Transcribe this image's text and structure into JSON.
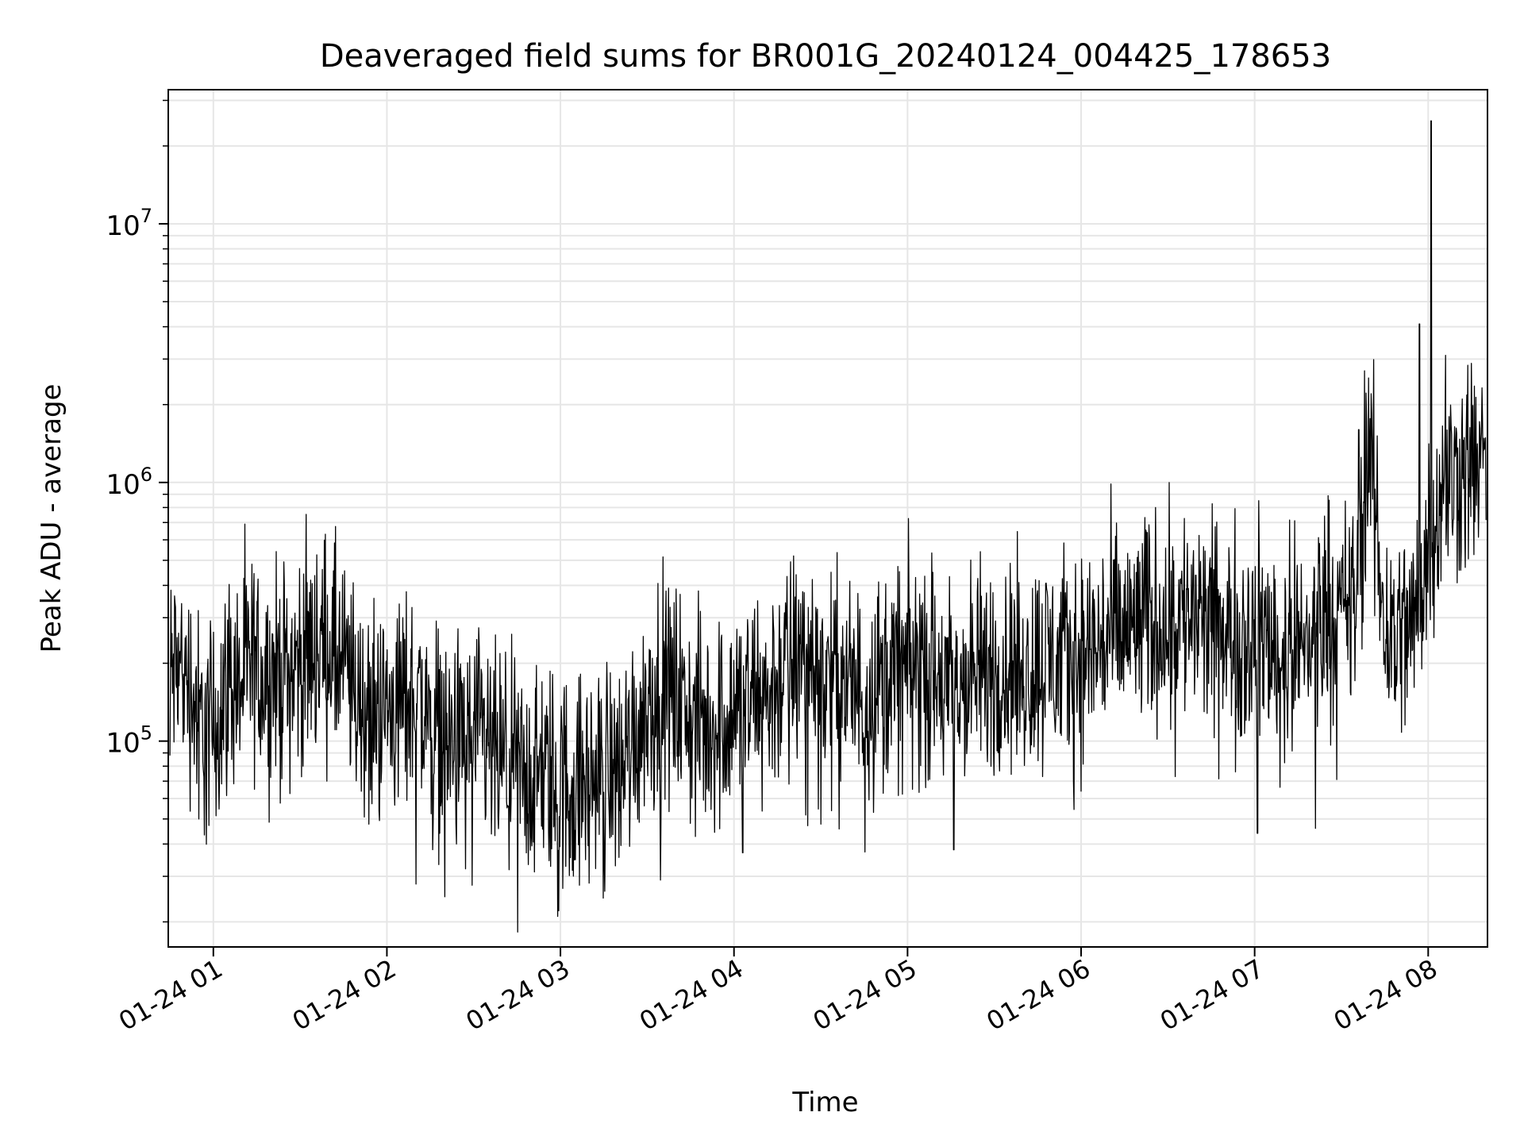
{
  "chart_data": {
    "type": "line",
    "title": "Deaveraged field sums for BR001G_20240124_004425_178653",
    "xlabel": "Time",
    "ylabel": "Peak ADU - average",
    "y_scale": "log",
    "ylim": [
      16000,
      33000000
    ],
    "xlim": [
      "2024-01-24 00:44:25",
      "2024-01-24 08:20:30"
    ],
    "grid": true,
    "line_color": "#000000",
    "grid_color": "#e6e6e6",
    "x_ticks": [
      {
        "time": "2024-01-24 01:00",
        "label": "01-24 01"
      },
      {
        "time": "2024-01-24 02:00",
        "label": "01-24 02"
      },
      {
        "time": "2024-01-24 03:00",
        "label": "01-24 03"
      },
      {
        "time": "2024-01-24 04:00",
        "label": "01-24 04"
      },
      {
        "time": "2024-01-24 05:00",
        "label": "01-24 05"
      },
      {
        "time": "2024-01-24 06:00",
        "label": "01-24 06"
      },
      {
        "time": "2024-01-24 07:00",
        "label": "01-24 07"
      },
      {
        "time": "2024-01-24 08:00",
        "label": "01-24 08"
      }
    ],
    "y_ticks": [
      {
        "value": 100000,
        "base": "10",
        "exp": "5"
      },
      {
        "value": 1000000,
        "base": "10",
        "exp": "6"
      },
      {
        "value": 10000000,
        "base": "10",
        "exp": "7"
      }
    ],
    "series": [
      {
        "points": [
          [
            "2024-01-24 00:45",
            180000
          ],
          [
            "2024-01-24 00:50",
            200000
          ],
          [
            "2024-01-24 00:55",
            120000
          ],
          [
            "2024-01-24 01:00",
            110000
          ],
          [
            "2024-01-24 01:05",
            170000
          ],
          [
            "2024-01-24 01:10",
            180000
          ],
          [
            "2024-01-24 01:15",
            190000
          ],
          [
            "2024-01-24 01:20",
            175000
          ],
          [
            "2024-01-24 01:25",
            185000
          ],
          [
            "2024-01-24 01:30",
            200000
          ],
          [
            "2024-01-24 01:35",
            230000
          ],
          [
            "2024-01-24 01:40",
            240000
          ],
          [
            "2024-01-24 01:45",
            190000
          ],
          [
            "2024-01-24 01:50",
            140000
          ],
          [
            "2024-01-24 01:55",
            130000
          ],
          [
            "2024-01-24 02:00",
            135000
          ],
          [
            "2024-01-24 02:05",
            140000
          ],
          [
            "2024-01-24 02:10",
            150000
          ],
          [
            "2024-01-24 02:15",
            120000
          ],
          [
            "2024-01-24 02:20",
            100000
          ],
          [
            "2024-01-24 02:25",
            95000
          ],
          [
            "2024-01-24 02:30",
            100000
          ],
          [
            "2024-01-24 02:35",
            90000
          ],
          [
            "2024-01-24 02:40",
            80000
          ],
          [
            "2024-01-24 02:45",
            75000
          ],
          [
            "2024-01-24 02:50",
            70000
          ],
          [
            "2024-01-24 02:55",
            75000
          ],
          [
            "2024-01-24 03:00",
            70000
          ],
          [
            "2024-01-24 03:05",
            65000
          ],
          [
            "2024-01-24 03:10",
            70000
          ],
          [
            "2024-01-24 03:15",
            75000
          ],
          [
            "2024-01-24 03:20",
            80000
          ],
          [
            "2024-01-24 03:25",
            100000
          ],
          [
            "2024-01-24 03:30",
            140000
          ],
          [
            "2024-01-24 03:35",
            160000
          ],
          [
            "2024-01-24 03:40",
            150000
          ],
          [
            "2024-01-24 03:45",
            120000
          ],
          [
            "2024-01-24 03:50",
            110000
          ],
          [
            "2024-01-24 03:55",
            120000
          ],
          [
            "2024-01-24 04:00",
            130000
          ],
          [
            "2024-01-24 04:05",
            140000
          ],
          [
            "2024-01-24 04:10",
            150000
          ],
          [
            "2024-01-24 04:15",
            170000
          ],
          [
            "2024-01-24 04:20",
            200000
          ],
          [
            "2024-01-24 04:25",
            210000
          ],
          [
            "2024-01-24 04:30",
            180000
          ],
          [
            "2024-01-24 04:35",
            170000
          ],
          [
            "2024-01-24 04:40",
            160000
          ],
          [
            "2024-01-24 04:45",
            150000
          ],
          [
            "2024-01-24 04:50",
            170000
          ],
          [
            "2024-01-24 04:55",
            180000
          ],
          [
            "2024-01-24 05:00",
            190000
          ],
          [
            "2024-01-24 05:05",
            200000
          ],
          [
            "2024-01-24 05:10",
            170000
          ],
          [
            "2024-01-24 05:15",
            160000
          ],
          [
            "2024-01-24 05:20",
            170000
          ],
          [
            "2024-01-24 05:25",
            180000
          ],
          [
            "2024-01-24 05:30",
            190000
          ],
          [
            "2024-01-24 05:35",
            195000
          ],
          [
            "2024-01-24 05:40",
            185000
          ],
          [
            "2024-01-24 05:45",
            200000
          ],
          [
            "2024-01-24 05:50",
            210000
          ],
          [
            "2024-01-24 05:55",
            200000
          ],
          [
            "2024-01-24 06:00",
            210000
          ],
          [
            "2024-01-24 06:05",
            230000
          ],
          [
            "2024-01-24 06:10",
            250000
          ],
          [
            "2024-01-24 06:15",
            260000
          ],
          [
            "2024-01-24 06:20",
            280000
          ],
          [
            "2024-01-24 06:25",
            290000
          ],
          [
            "2024-01-24 06:30",
            300000
          ],
          [
            "2024-01-24 06:35",
            310000
          ],
          [
            "2024-01-24 06:40",
            290000
          ],
          [
            "2024-01-24 06:45",
            270000
          ],
          [
            "2024-01-24 06:50",
            260000
          ],
          [
            "2024-01-24 06:55",
            250000
          ],
          [
            "2024-01-24 07:00",
            260000
          ],
          [
            "2024-01-24 07:05",
            250000
          ],
          [
            "2024-01-24 07:10",
            240000
          ],
          [
            "2024-01-24 07:15",
            220000
          ],
          [
            "2024-01-24 07:20",
            260000
          ],
          [
            "2024-01-24 07:25",
            350000
          ],
          [
            "2024-01-24 07:30",
            300000
          ],
          [
            "2024-01-24 07:35",
            350000
          ],
          [
            "2024-01-24 07:40",
            1300000
          ],
          [
            "2024-01-24 07:45",
            270000
          ],
          [
            "2024-01-24 07:50",
            260000
          ],
          [
            "2024-01-24 07:55",
            280000
          ],
          [
            "2024-01-24 08:00",
            650000
          ],
          [
            "2024-01-24 08:05",
            900000
          ],
          [
            "2024-01-24 08:10",
            1100000
          ],
          [
            "2024-01-24 08:15",
            1200000
          ],
          [
            "2024-01-24 08:20",
            1200000
          ]
        ],
        "spikes": [
          [
            "2024-01-24 07:36",
            1600000
          ],
          [
            "2024-01-24 07:38",
            2700000
          ],
          [
            "2024-01-24 07:57",
            4100000
          ],
          [
            "2024-01-24 08:01",
            25000000
          ],
          [
            "2024-01-24 08:06",
            3100000
          ]
        ],
        "dips": [
          [
            "2024-01-24 02:59",
            21000
          ],
          [
            "2024-01-24 02:20",
            25000
          ],
          [
            "2024-01-24 02:10",
            28000
          ],
          [
            "2024-01-24 05:16",
            38000
          ],
          [
            "2024-01-24 07:01",
            44000
          ],
          [
            "2024-01-24 07:21",
            46000
          ],
          [
            "2024-01-24 00:55",
            50000
          ],
          [
            "2024-01-24 04:03",
            37000
          ]
        ]
      }
    ]
  }
}
